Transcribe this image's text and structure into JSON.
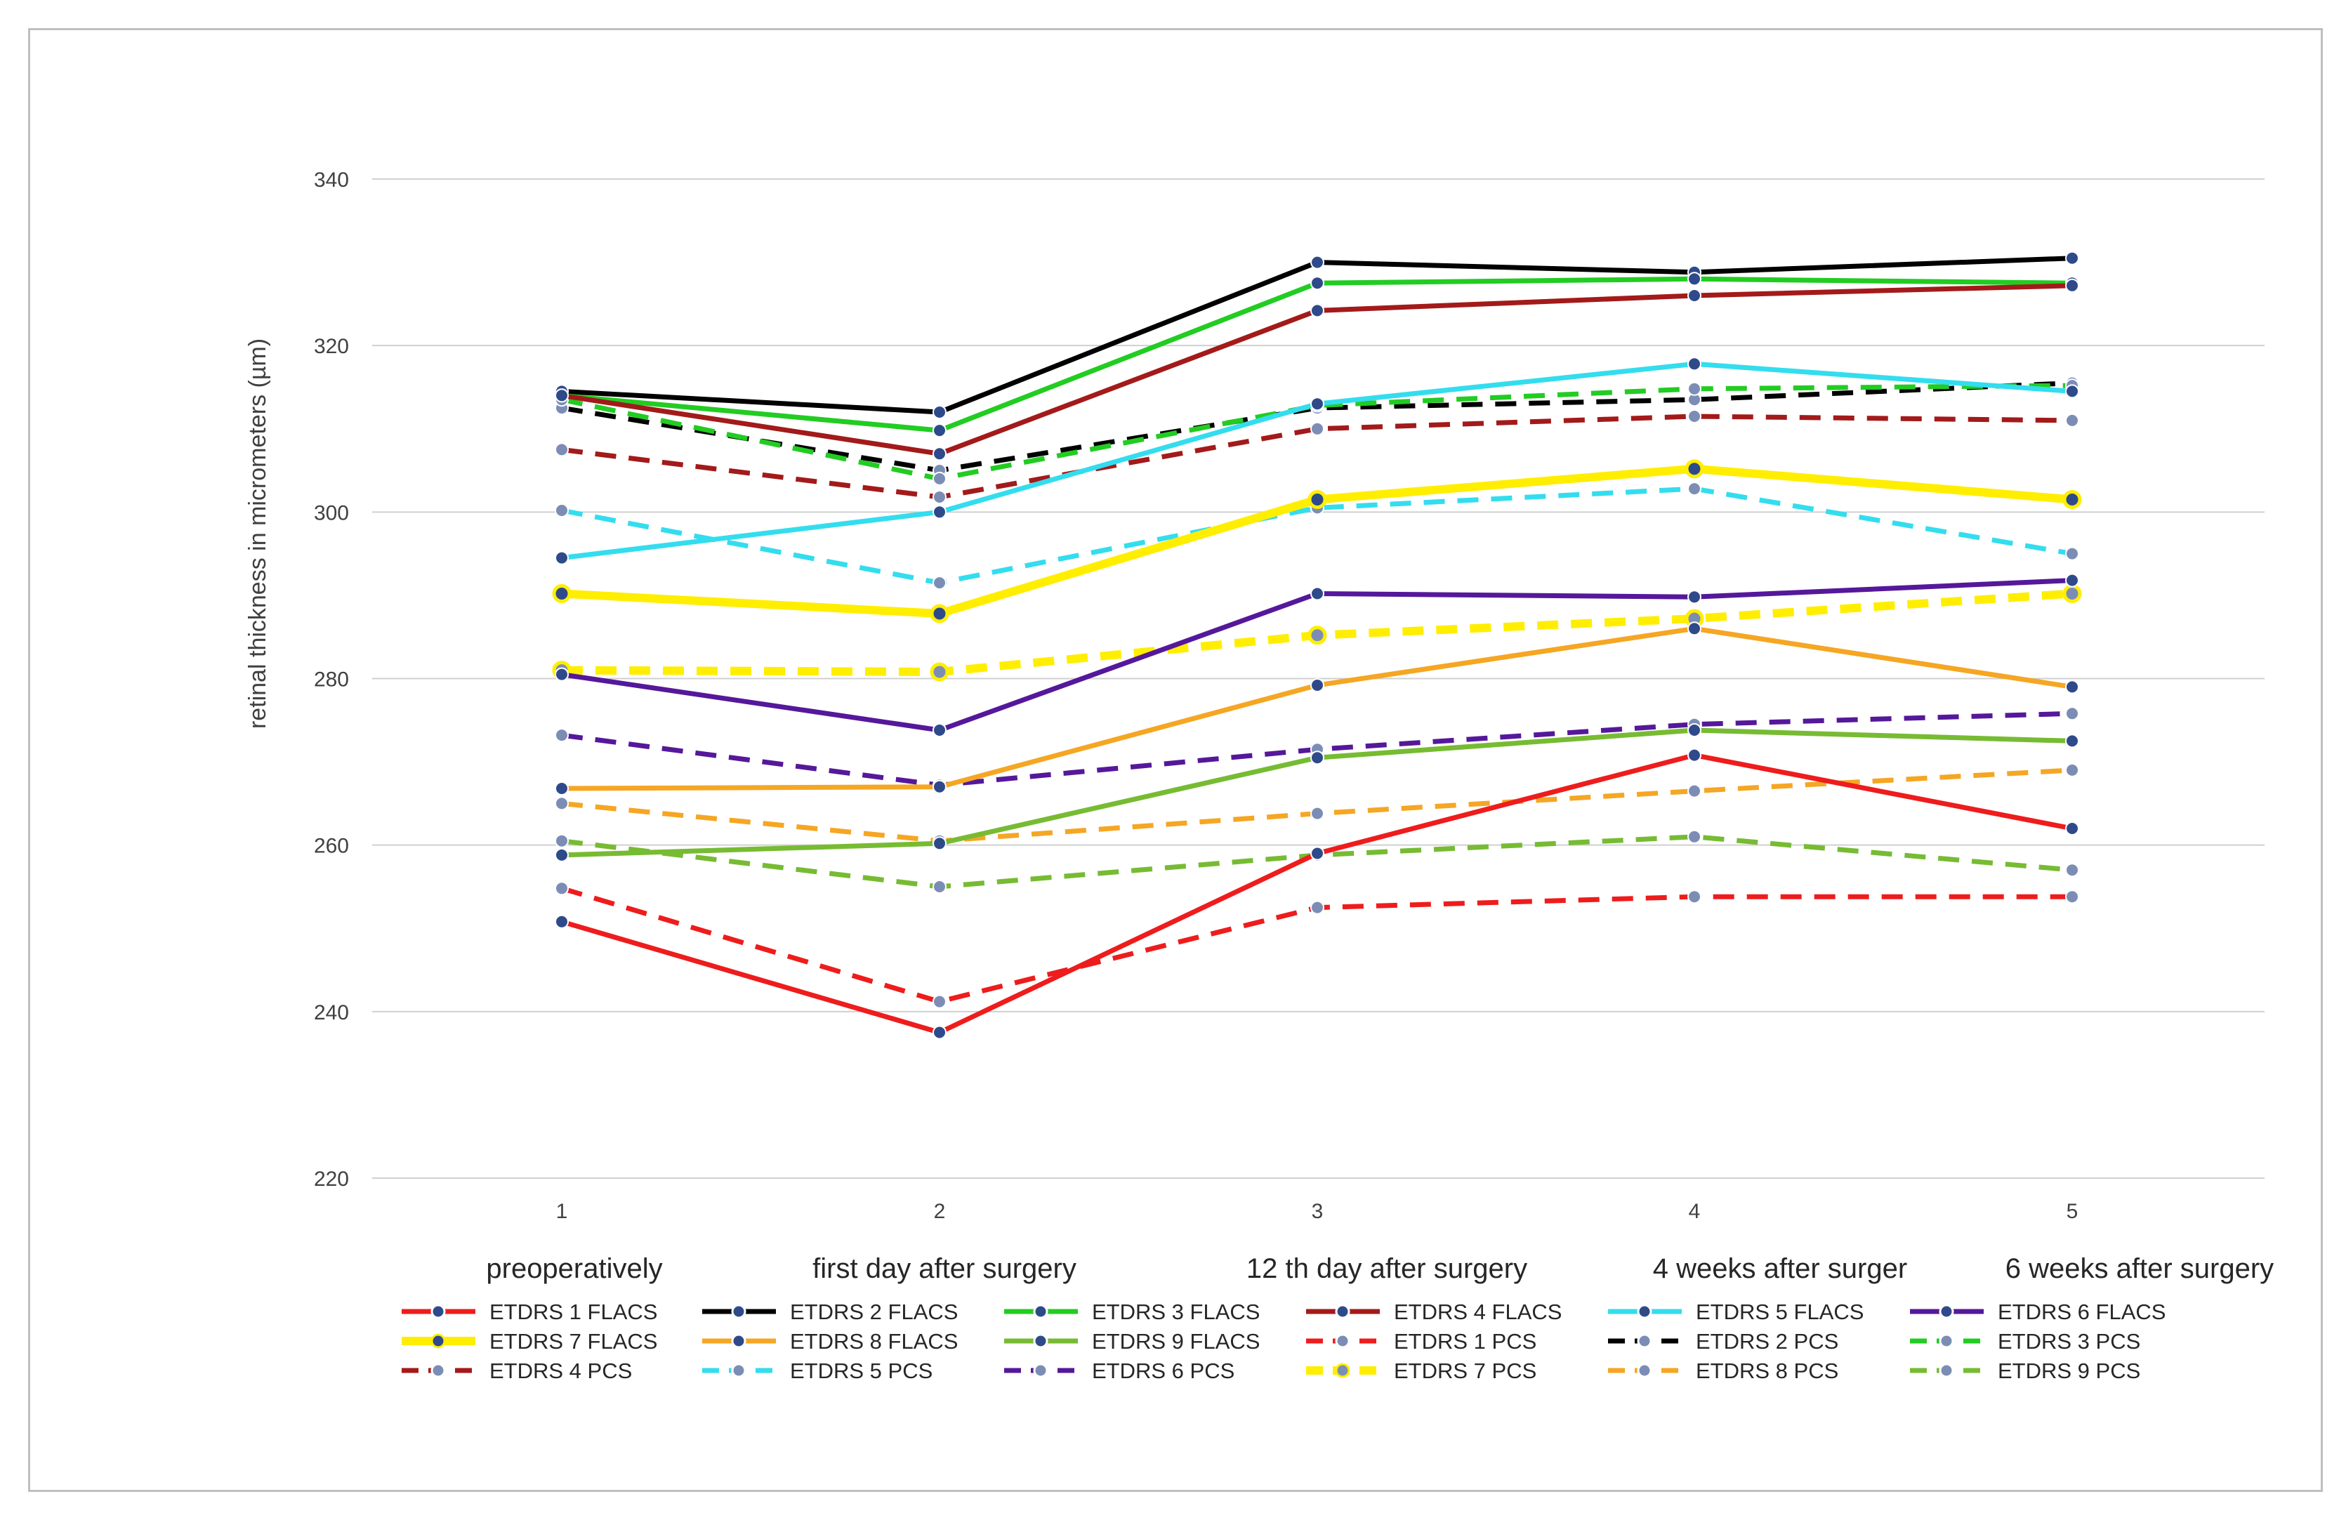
{
  "chart_data": {
    "type": "line",
    "ylabel": "retinal thickness in micrometers (µm)",
    "ylim": [
      220,
      340
    ],
    "yticks": [
      220,
      240,
      260,
      280,
      300,
      320,
      340
    ],
    "grid": true,
    "x": [
      1,
      2,
      3,
      4,
      5
    ],
    "x_tick_labels": [
      "1",
      "2",
      "3",
      "4",
      "5"
    ],
    "categories": [
      "preoperatively",
      "first day after surgery",
      "12 th day after surgery",
      "4 weeks after surger",
      "6 weeks after surgery"
    ],
    "legend_position": "bottom",
    "series": [
      {
        "name": "ETDRS 1 FLACS",
        "color": "#ee1c1c",
        "style": "solid",
        "values": [
          250.8,
          237.5,
          259.0,
          270.8,
          262.0
        ]
      },
      {
        "name": "ETDRS 2 FLACS",
        "color": "#000000",
        "style": "solid",
        "values": [
          314.5,
          312.0,
          330.0,
          328.8,
          330.5
        ]
      },
      {
        "name": "ETDRS 3 FLACS",
        "color": "#22cc22",
        "style": "solid",
        "values": [
          314.0,
          309.8,
          327.5,
          328.0,
          327.5
        ]
      },
      {
        "name": "ETDRS 4 FLACS",
        "color": "#a31a1a",
        "style": "solid",
        "values": [
          314.0,
          307.0,
          324.2,
          326.0,
          327.2
        ]
      },
      {
        "name": "ETDRS 5 FLACS",
        "color": "#33ddee",
        "style": "solid",
        "values": [
          294.5,
          300.0,
          313.0,
          317.8,
          314.5
        ]
      },
      {
        "name": "ETDRS 6 FLACS",
        "color": "#55189a",
        "style": "solid",
        "values": [
          280.5,
          273.8,
          290.2,
          289.8,
          291.8
        ]
      },
      {
        "name": "ETDRS 7 FLACS",
        "color": "#ffee00",
        "style": "solid",
        "values": [
          290.2,
          287.8,
          301.5,
          305.2,
          301.5
        ]
      },
      {
        "name": "ETDRS 8 FLACS",
        "color": "#f5a623",
        "style": "solid",
        "values": [
          266.8,
          267.0,
          279.2,
          286.0,
          279.0
        ]
      },
      {
        "name": "ETDRS 9 FLACS",
        "color": "#77bb33",
        "style": "solid",
        "values": [
          258.8,
          260.2,
          270.5,
          273.8,
          272.5
        ]
      },
      {
        "name": "ETDRS 1 PCS",
        "color": "#ee1c1c",
        "style": "dashed",
        "values": [
          254.8,
          241.2,
          252.5,
          253.8,
          253.8
        ]
      },
      {
        "name": "ETDRS 2 PCS",
        "color": "#000000",
        "style": "dashed",
        "values": [
          312.5,
          305.0,
          312.5,
          313.5,
          315.5
        ]
      },
      {
        "name": "ETDRS 3 PCS",
        "color": "#22cc22",
        "style": "dashed",
        "values": [
          313.5,
          304.0,
          312.8,
          314.8,
          315.2
        ]
      },
      {
        "name": "ETDRS 4 PCS",
        "color": "#a31a1a",
        "style": "dashed",
        "values": [
          307.5,
          301.8,
          310.0,
          311.5,
          311.0
        ]
      },
      {
        "name": "ETDRS 5 PCS",
        "color": "#33ddee",
        "style": "dashed",
        "values": [
          300.2,
          291.5,
          300.5,
          302.8,
          295.0
        ]
      },
      {
        "name": "ETDRS 6 PCS",
        "color": "#55189a",
        "style": "dashed",
        "values": [
          273.2,
          267.2,
          271.5,
          274.5,
          275.8
        ]
      },
      {
        "name": "ETDRS 7 PCS",
        "color": "#ffee00",
        "style": "dashed",
        "values": [
          281.0,
          280.8,
          285.2,
          287.2,
          290.2
        ]
      },
      {
        "name": "ETDRS 8 PCS",
        "color": "#f5a623",
        "style": "dashed",
        "values": [
          265.0,
          260.5,
          263.8,
          266.5,
          269.0
        ]
      },
      {
        "name": "ETDRS 9 PCS",
        "color": "#77bb33",
        "style": "dashed",
        "values": [
          260.5,
          255.0,
          258.8,
          261.0,
          257.0
        ]
      }
    ]
  }
}
